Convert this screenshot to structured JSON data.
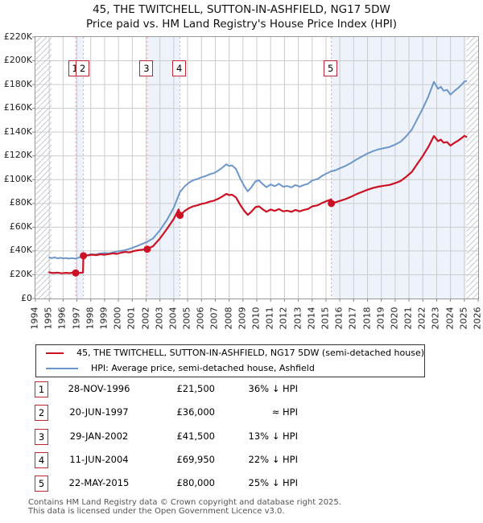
{
  "title": {
    "line1": "45, THE TWITCHELL, SUTTON-IN-ASHFIELD, NG17 5DW",
    "line2": "Price paid vs. HM Land Registry's House Price Index (HPI)"
  },
  "legend": {
    "series": [
      {
        "label": "45, THE TWITCHELL, SUTTON-IN-ASHFIELD, NG17 5DW (semi-detached house)",
        "color": "#cc1124"
      },
      {
        "label": "HPI: Average price, semi-detached house, Ashfield",
        "color": "#6d97c9"
      }
    ]
  },
  "colors": {
    "price_line": "#cc1124",
    "hpi_line": "#6d97c9",
    "grid": "#cccccc",
    "plot_border": "#999999",
    "dashed_event_line": "#f59a9a",
    "ownership_band": "#edf2fb",
    "hatch_line": "#c4c8d0",
    "numbox_border": "#c3232e",
    "footer_text": "#545454"
  },
  "chart_data": {
    "type": "line",
    "title": "Price paid vs. HM Land Registry's House Price Index (HPI)",
    "xlabel": "",
    "ylabel": "",
    "xlim": [
      1994,
      2026
    ],
    "ylim": [
      0,
      220
    ],
    "y_unit": "GBP thousands",
    "grid": true,
    "legend_position": "below",
    "x_ticks": [
      "1994",
      "1995",
      "1996",
      "1997",
      "1998",
      "1999",
      "2000",
      "2001",
      "2002",
      "2003",
      "2004",
      "2005",
      "2006",
      "2007",
      "2008",
      "2009",
      "2010",
      "2011",
      "2012",
      "2013",
      "2014",
      "2015",
      "2016",
      "2017",
      "2018",
      "2019",
      "2020",
      "2021",
      "2022",
      "2023",
      "2024",
      "2025",
      "2026"
    ],
    "y_tick_values": [
      0,
      20,
      40,
      60,
      80,
      100,
      120,
      140,
      160,
      180,
      200,
      220
    ],
    "y_tick_labels": [
      "£0",
      "£20K",
      "£40K",
      "£60K",
      "£80K",
      "£100K",
      "£120K",
      "£140K",
      "£160K",
      "£180K",
      "£200K",
      "£220K"
    ],
    "series": [
      {
        "name": "hpi_average_price",
        "color": "#6d97c9",
        "width": 2,
        "points": [
          [
            1995.0,
            34.5
          ],
          [
            1995.2,
            34.0
          ],
          [
            1995.4,
            34.6
          ],
          [
            1995.6,
            33.8
          ],
          [
            1995.8,
            34.3
          ],
          [
            1996.0,
            33.7
          ],
          [
            1996.2,
            34.1
          ],
          [
            1996.4,
            33.6
          ],
          [
            1996.6,
            34.0
          ],
          [
            1996.8,
            33.7
          ],
          [
            1996.91,
            33.6
          ],
          [
            1997.1,
            34.3
          ],
          [
            1997.3,
            35.2
          ],
          [
            1997.47,
            36.0
          ],
          [
            1997.7,
            36.4
          ],
          [
            1998.0,
            37.3
          ],
          [
            1998.3,
            37.0
          ],
          [
            1998.6,
            37.8
          ],
          [
            1999.0,
            38.3
          ],
          [
            1999.3,
            38.0
          ],
          [
            1999.6,
            38.8
          ],
          [
            2000.0,
            39.8
          ],
          [
            2000.4,
            40.5
          ],
          [
            2000.8,
            41.8
          ],
          [
            2001.2,
            43.5
          ],
          [
            2001.6,
            45.3
          ],
          [
            2002.08,
            47.7
          ],
          [
            2002.5,
            50.5
          ],
          [
            2003.0,
            57.5
          ],
          [
            2003.5,
            66.0
          ],
          [
            2004.0,
            76.5
          ],
          [
            2004.45,
            89.7
          ],
          [
            2004.8,
            94.5
          ],
          [
            2005.1,
            97.5
          ],
          [
            2005.4,
            99.5
          ],
          [
            2005.7,
            100.5
          ],
          [
            2006.0,
            102.0
          ],
          [
            2006.3,
            103.0
          ],
          [
            2006.6,
            104.5
          ],
          [
            2006.9,
            105.5
          ],
          [
            2007.2,
            107.5
          ],
          [
            2007.5,
            110.0
          ],
          [
            2007.8,
            113.0
          ],
          [
            2008.0,
            111.5
          ],
          [
            2008.2,
            112.0
          ],
          [
            2008.5,
            109.0
          ],
          [
            2008.8,
            101.0
          ],
          [
            2009.1,
            94.5
          ],
          [
            2009.35,
            90.2
          ],
          [
            2009.6,
            93.5
          ],
          [
            2009.9,
            98.5
          ],
          [
            2010.15,
            99.5
          ],
          [
            2010.4,
            96.5
          ],
          [
            2010.7,
            93.6
          ],
          [
            2011.0,
            96.0
          ],
          [
            2011.3,
            94.5
          ],
          [
            2011.6,
            96.5
          ],
          [
            2011.9,
            94.0
          ],
          [
            2012.2,
            94.7
          ],
          [
            2012.5,
            93.5
          ],
          [
            2012.8,
            95.5
          ],
          [
            2013.1,
            94.0
          ],
          [
            2013.4,
            95.5
          ],
          [
            2013.7,
            96.5
          ],
          [
            2014.0,
            99.3
          ],
          [
            2014.4,
            100.5
          ],
          [
            2014.7,
            103.0
          ],
          [
            2015.0,
            104.9
          ],
          [
            2015.39,
            107.0
          ],
          [
            2015.7,
            108.0
          ],
          [
            2016.0,
            109.5
          ],
          [
            2016.4,
            111.5
          ],
          [
            2016.8,
            114.0
          ],
          [
            2017.2,
            117.0
          ],
          [
            2017.6,
            119.5
          ],
          [
            2018.0,
            122.0
          ],
          [
            2018.4,
            124.0
          ],
          [
            2018.8,
            125.5
          ],
          [
            2019.2,
            126.5
          ],
          [
            2019.6,
            127.5
          ],
          [
            2020.0,
            129.5
          ],
          [
            2020.4,
            132.0
          ],
          [
            2020.8,
            136.5
          ],
          [
            2021.2,
            142.0
          ],
          [
            2021.6,
            151.0
          ],
          [
            2022.0,
            160.0
          ],
          [
            2022.4,
            170.0
          ],
          [
            2022.8,
            182.3
          ],
          [
            2023.1,
            176.5
          ],
          [
            2023.3,
            178.2
          ],
          [
            2023.5,
            174.8
          ],
          [
            2023.75,
            175.5
          ],
          [
            2024.0,
            171.5
          ],
          [
            2024.3,
            174.8
          ],
          [
            2024.55,
            177.1
          ],
          [
            2024.8,
            179.8
          ],
          [
            2025.0,
            182.5
          ],
          [
            2025.15,
            183.0
          ]
        ]
      },
      {
        "name": "price_paid_hpi_scaled",
        "color": "#cc1124",
        "width": 2.2,
        "points": [
          [
            1995.0,
            22.0
          ],
          [
            1995.3,
            21.4
          ],
          [
            1995.6,
            21.8
          ],
          [
            1995.9,
            21.2
          ],
          [
            1996.2,
            21.6
          ],
          [
            1996.5,
            21.3
          ],
          [
            1996.7,
            21.8
          ],
          [
            1996.91,
            21.5
          ],
          [
            1997.2,
            21.6
          ],
          [
            1997.44,
            21.8
          ],
          [
            1997.47,
            36.0
          ],
          [
            1997.8,
            36.3
          ],
          [
            1998.1,
            36.9
          ],
          [
            1998.4,
            36.5
          ],
          [
            1998.7,
            37.2
          ],
          [
            1999.0,
            36.8
          ],
          [
            1999.3,
            37.4
          ],
          [
            1999.6,
            38.0
          ],
          [
            1999.9,
            37.6
          ],
          [
            2000.2,
            38.6
          ],
          [
            2000.5,
            39.2
          ],
          [
            2000.8,
            38.8
          ],
          [
            2001.1,
            39.9
          ],
          [
            2001.4,
            40.6
          ],
          [
            2001.7,
            41.0
          ],
          [
            2002.08,
            41.5
          ],
          [
            2002.5,
            44.0
          ],
          [
            2003.0,
            50.5
          ],
          [
            2003.5,
            58.5
          ],
          [
            2004.0,
            67.0
          ],
          [
            2004.35,
            75.0
          ],
          [
            2004.45,
            70.0
          ],
          [
            2004.8,
            73.7
          ],
          [
            2005.1,
            76.0
          ],
          [
            2005.4,
            77.6
          ],
          [
            2005.7,
            78.4
          ],
          [
            2006.0,
            79.6
          ],
          [
            2006.3,
            80.3
          ],
          [
            2006.6,
            81.5
          ],
          [
            2006.9,
            82.3
          ],
          [
            2007.2,
            83.9
          ],
          [
            2007.5,
            85.8
          ],
          [
            2007.8,
            88.1
          ],
          [
            2008.0,
            87.0
          ],
          [
            2008.2,
            87.4
          ],
          [
            2008.5,
            85.0
          ],
          [
            2008.8,
            78.8
          ],
          [
            2009.1,
            73.7
          ],
          [
            2009.35,
            70.4
          ],
          [
            2009.6,
            72.9
          ],
          [
            2009.9,
            76.8
          ],
          [
            2010.15,
            77.6
          ],
          [
            2010.4,
            75.3
          ],
          [
            2010.7,
            73.0
          ],
          [
            2011.0,
            74.9
          ],
          [
            2011.3,
            73.7
          ],
          [
            2011.6,
            75.3
          ],
          [
            2011.9,
            73.3
          ],
          [
            2012.2,
            73.9
          ],
          [
            2012.5,
            72.9
          ],
          [
            2012.8,
            74.5
          ],
          [
            2013.1,
            73.3
          ],
          [
            2013.4,
            74.5
          ],
          [
            2013.7,
            75.3
          ],
          [
            2014.0,
            77.5
          ],
          [
            2014.4,
            78.4
          ],
          [
            2014.7,
            80.3
          ],
          [
            2015.0,
            81.8
          ],
          [
            2015.38,
            83.4
          ],
          [
            2015.39,
            80.0
          ],
          [
            2015.7,
            81.0
          ],
          [
            2016.0,
            82.1
          ],
          [
            2016.4,
            83.6
          ],
          [
            2016.8,
            85.5
          ],
          [
            2017.2,
            87.8
          ],
          [
            2017.6,
            89.6
          ],
          [
            2018.0,
            91.5
          ],
          [
            2018.4,
            93.0
          ],
          [
            2018.8,
            94.1
          ],
          [
            2019.2,
            94.9
          ],
          [
            2019.6,
            95.6
          ],
          [
            2020.0,
            97.1
          ],
          [
            2020.4,
            99.0
          ],
          [
            2020.8,
            102.4
          ],
          [
            2021.2,
            106.5
          ],
          [
            2021.6,
            113.3
          ],
          [
            2022.0,
            120.0
          ],
          [
            2022.4,
            127.5
          ],
          [
            2022.8,
            136.7
          ],
          [
            2023.1,
            132.4
          ],
          [
            2023.3,
            133.7
          ],
          [
            2023.5,
            131.1
          ],
          [
            2023.75,
            131.6
          ],
          [
            2024.0,
            128.6
          ],
          [
            2024.3,
            131.1
          ],
          [
            2024.55,
            132.8
          ],
          [
            2024.8,
            134.9
          ],
          [
            2025.0,
            136.9
          ],
          [
            2025.15,
            136.0
          ]
        ]
      }
    ],
    "markers": [
      {
        "label": "1",
        "x": 1996.91,
        "y": 21.5
      },
      {
        "label": "2",
        "x": 1997.47,
        "y": 36.0
      },
      {
        "label": "3",
        "x": 2002.08,
        "y": 41.5
      },
      {
        "label": "4",
        "x": 2004.45,
        "y": 70.0
      },
      {
        "label": "5",
        "x": 2015.39,
        "y": 80.0
      }
    ],
    "annotation_boxes": [
      {
        "label": "1",
        "x": 1996.91
      },
      {
        "label": "2",
        "x": 1997.47
      },
      {
        "label": "3",
        "x": 2002.08
      },
      {
        "label": "4",
        "x": 2004.45
      },
      {
        "label": "5",
        "x": 2015.39
      }
    ],
    "event_dashed_lines": [
      1996.91,
      1997.47,
      2002.08,
      2004.45,
      2015.39
    ],
    "ownership_bands": [
      [
        1996.91,
        1997.47
      ],
      [
        2002.08,
        2004.45
      ],
      [
        2015.39,
        2025.15
      ]
    ],
    "hatch_regions": [
      [
        1994.0,
        1995.17
      ],
      [
        2025.17,
        2026.0
      ]
    ]
  },
  "transactions": {
    "rows": [
      {
        "num": "1",
        "date": "28-NOV-1996",
        "price": "£21,500",
        "vs_hpi": "36% ↓ HPI"
      },
      {
        "num": "2",
        "date": "20-JUN-1997",
        "price": "£36,000",
        "vs_hpi": "≈ HPI"
      },
      {
        "num": "3",
        "date": "29-JAN-2002",
        "price": "£41,500",
        "vs_hpi": "13% ↓ HPI"
      },
      {
        "num": "4",
        "date": "11-JUN-2004",
        "price": "£69,950",
        "vs_hpi": "22% ↓ HPI"
      },
      {
        "num": "5",
        "date": "22-MAY-2015",
        "price": "£80,000",
        "vs_hpi": "25% ↓ HPI"
      }
    ]
  },
  "footer": {
    "line1": "Contains HM Land Registry data © Crown copyright and database right 2025.",
    "line2": "This data is licensed under the Open Government Licence v3.0."
  }
}
